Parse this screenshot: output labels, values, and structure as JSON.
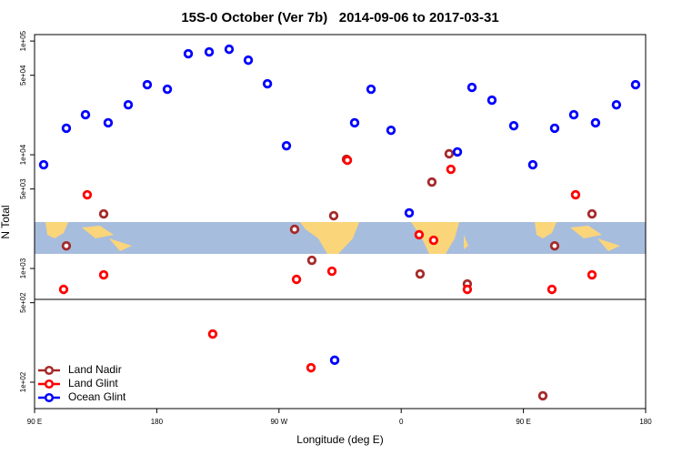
{
  "chart_data": {
    "type": "scatter",
    "title": "15S-0 October (Ver 7b)   2014-09-06 to 2017-03-31",
    "x_label": "Longitude (deg E)",
    "y_label": "N Total",
    "y_scale": "log",
    "legend_position": "bottom-left",
    "xlim": [
      90,
      540
    ],
    "xticks": [
      {
        "value": 90,
        "label": "90 E"
      },
      180,
      {
        "value": 270,
        "label": "90 W"
      },
      {
        "value": 360,
        "label": "0"
      },
      {
        "value": 450,
        "label": "90 E"
      },
      {
        "value": 540,
        "label": "180"
      }
    ],
    "ylim": [
      58.6,
      114000
    ],
    "yticks": [
      {
        "value": 100000,
        "label": "1e+05"
      },
      {
        "value": 50000,
        "label": "5e+04"
      },
      {
        "value": 10000,
        "label": "1e+04"
      },
      {
        "value": 5000,
        "label": "5e+03"
      },
      {
        "value": 1000,
        "label": "1e+03"
      },
      {
        "value": 500,
        "label": "5e+02"
      },
      {
        "value": 100,
        "label": "1e+02"
      }
    ],
    "series": [
      {
        "name": "Land Nadir",
        "color": "#a52a2a",
        "x": [
          113.4,
          140.9,
          281.5,
          294.2,
          310.3,
          319.7,
          373.9,
          382.6,
          395.3,
          408.7,
          464.3,
          473,
          500.5
        ],
        "values": [
          1580,
          3020,
          2210,
          1180,
          2910,
          9120,
          895,
          5750,
          10200,
          731,
          75.9,
          1580,
          3020
        ]
      },
      {
        "name": "Land Glint",
        "color": "#ff0000",
        "x": [
          111.4,
          128.8,
          140.9,
          221.2,
          282.9,
          293.6,
          309,
          320.4,
          373.2,
          383.9,
          396.6,
          408.7,
          471,
          488.4,
          500.5
        ],
        "values": [
          655,
          4450,
          879,
          265,
          802,
          134,
          946,
          8950,
          1980,
          1770,
          7450,
          655,
          655,
          4450,
          879
        ]
      },
      {
        "name": "Ocean Glint",
        "color": "#0000ff",
        "x": [
          96.7,
          113.4,
          127.5,
          144.2,
          159,
          173,
          187.8,
          203.2,
          218.6,
          233.3,
          247.4,
          261.5,
          275.5,
          311,
          325.7,
          337.8,
          352.5,
          365.9,
          401.4,
          412.1,
          426.8,
          442.9,
          456.9,
          473,
          487.1,
          503.1,
          518.5,
          532.6
        ],
        "values": [
          8170,
          17100,
          22500,
          19100,
          27500,
          41300,
          37700,
          77300,
          80200,
          84700,
          67900,
          42100,
          12000,
          156,
          19100,
          37700,
          16400,
          3080,
          10600,
          39100,
          30200,
          18000,
          8170,
          17100,
          22500,
          19100,
          27500,
          41300
        ]
      }
    ]
  }
}
